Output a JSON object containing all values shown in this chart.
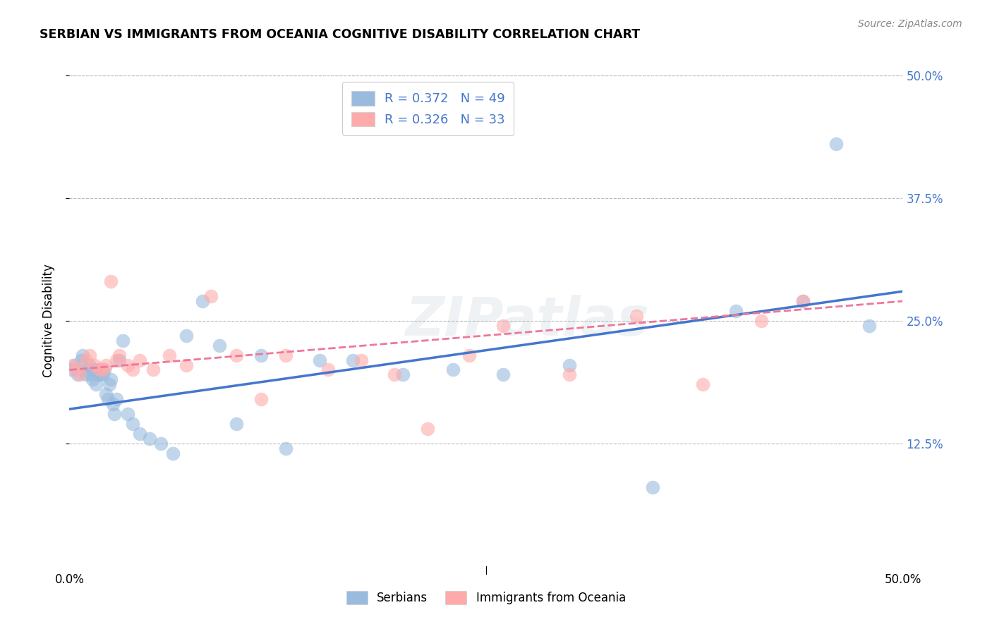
{
  "title": "SERBIAN VS IMMIGRANTS FROM OCEANIA COGNITIVE DISABILITY CORRELATION CHART",
  "source": "Source: ZipAtlas.com",
  "ylabel": "Cognitive Disability",
  "xlim": [
    0.0,
    0.5
  ],
  "ylim": [
    0.0,
    0.5
  ],
  "yticks": [
    0.125,
    0.25,
    0.375,
    0.5
  ],
  "xticks": [
    0.0,
    0.1,
    0.2,
    0.3,
    0.4,
    0.5
  ],
  "legend_label1": "R = 0.372   N = 49",
  "legend_label2": "R = 0.326   N = 33",
  "legend_bottom_label1": "Serbians",
  "legend_bottom_label2": "Immigrants from Oceania",
  "blue_color": "#99BBDD",
  "pink_color": "#FFAAAA",
  "blue_line_color": "#4477CC",
  "pink_line_color": "#EE7799",
  "watermark": "ZIPatlas",
  "background_color": "#FFFFFF",
  "grid_color": "#BBBBBB",
  "blue_scatter_x": [
    0.001,
    0.003,
    0.005,
    0.007,
    0.008,
    0.01,
    0.011,
    0.012,
    0.013,
    0.014,
    0.015,
    0.016,
    0.017,
    0.018,
    0.019,
    0.02,
    0.021,
    0.022,
    0.023,
    0.024,
    0.025,
    0.026,
    0.027,
    0.028,
    0.03,
    0.032,
    0.035,
    0.038,
    0.042,
    0.048,
    0.055,
    0.062,
    0.07,
    0.08,
    0.09,
    0.1,
    0.115,
    0.13,
    0.15,
    0.17,
    0.2,
    0.23,
    0.26,
    0.3,
    0.35,
    0.4,
    0.44,
    0.46,
    0.48
  ],
  "blue_scatter_y": [
    0.2,
    0.205,
    0.195,
    0.21,
    0.215,
    0.195,
    0.2,
    0.205,
    0.195,
    0.19,
    0.2,
    0.185,
    0.195,
    0.2,
    0.195,
    0.195,
    0.2,
    0.175,
    0.17,
    0.185,
    0.19,
    0.165,
    0.155,
    0.17,
    0.21,
    0.23,
    0.155,
    0.145,
    0.135,
    0.13,
    0.125,
    0.115,
    0.235,
    0.27,
    0.225,
    0.145,
    0.215,
    0.12,
    0.21,
    0.21,
    0.195,
    0.2,
    0.195,
    0.205,
    0.08,
    0.26,
    0.27,
    0.43,
    0.245
  ],
  "pink_scatter_x": [
    0.002,
    0.004,
    0.006,
    0.01,
    0.012,
    0.015,
    0.018,
    0.02,
    0.022,
    0.025,
    0.028,
    0.03,
    0.035,
    0.038,
    0.042,
    0.05,
    0.06,
    0.07,
    0.085,
    0.1,
    0.115,
    0.13,
    0.155,
    0.175,
    0.195,
    0.215,
    0.24,
    0.26,
    0.3,
    0.34,
    0.38,
    0.415,
    0.44
  ],
  "pink_scatter_y": [
    0.205,
    0.2,
    0.195,
    0.21,
    0.215,
    0.205,
    0.2,
    0.2,
    0.205,
    0.29,
    0.21,
    0.215,
    0.205,
    0.2,
    0.21,
    0.2,
    0.215,
    0.205,
    0.275,
    0.215,
    0.17,
    0.215,
    0.2,
    0.21,
    0.195,
    0.14,
    0.215,
    0.245,
    0.195,
    0.255,
    0.185,
    0.25,
    0.27
  ],
  "blue_line_x0": 0.0,
  "blue_line_x1": 0.5,
  "blue_line_y0": 0.16,
  "blue_line_y1": 0.28,
  "pink_line_x0": 0.0,
  "pink_line_x1": 0.5,
  "pink_line_y0": 0.2,
  "pink_line_y1": 0.27
}
